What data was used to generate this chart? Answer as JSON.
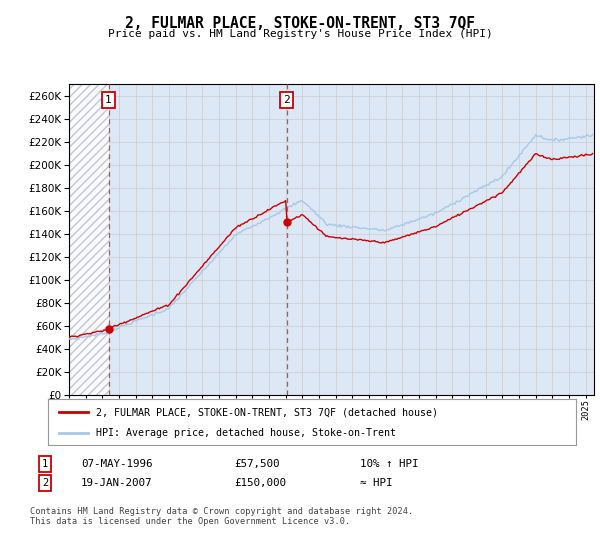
{
  "title": "2, FULMAR PLACE, STOKE-ON-TRENT, ST3 7QF",
  "subtitle": "Price paid vs. HM Land Registry's House Price Index (HPI)",
  "legend_line1": "2, FULMAR PLACE, STOKE-ON-TRENT, ST3 7QF (detached house)",
  "legend_line2": "HPI: Average price, detached house, Stoke-on-Trent",
  "annotation1_label": "1",
  "annotation1_date": "07-MAY-1996",
  "annotation1_price": "£57,500",
  "annotation1_hpi": "10% ↑ HPI",
  "annotation2_label": "2",
  "annotation2_date": "19-JAN-2007",
  "annotation2_price": "£150,000",
  "annotation2_hpi": "≈ HPI",
  "footer": "Contains HM Land Registry data © Crown copyright and database right 2024.\nThis data is licensed under the Open Government Licence v3.0.",
  "sale1_year": 1996.37,
  "sale1_price": 57500,
  "sale2_year": 2007.05,
  "sale2_price": 150000,
  "ylim_min": 0,
  "ylim_max": 270000,
  "xlim_min": 1994,
  "xlim_max": 2025.5,
  "hpi_color": "#a8c8e8",
  "price_color": "#cc0000",
  "vline_color": "#dd4444",
  "grid_color": "#cccccc",
  "plot_bg": "#dce8f5",
  "hatch_color": "#bbbbcc"
}
